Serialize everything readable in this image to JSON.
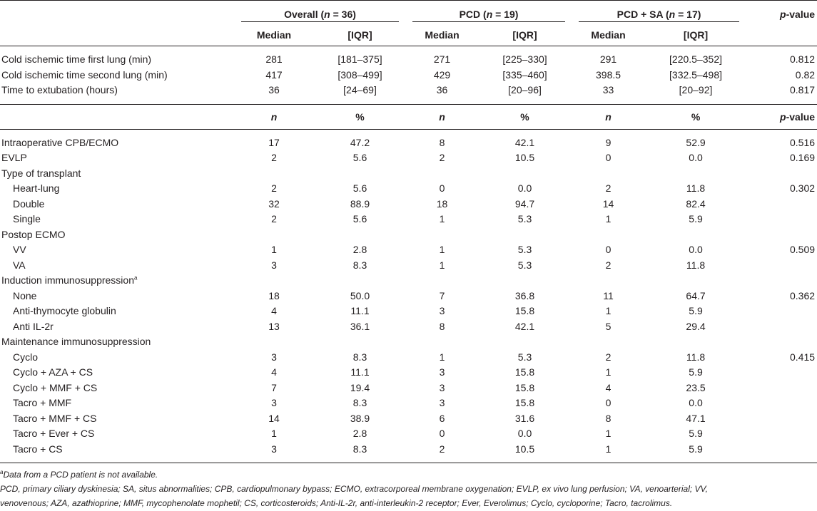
{
  "header": {
    "groups": [
      {
        "pre": "Overall (",
        "n": "n",
        "post": " = 36)"
      },
      {
        "pre": "PCD (",
        "n": "n",
        "post": " = 19)"
      },
      {
        "pre": "PCD + SA (",
        "n": "n",
        "post": " = 17)"
      }
    ],
    "pvalue_p": "p",
    "pvalue_rest": "-value",
    "median": "Median",
    "iqr": "[IQR]",
    "n": "n",
    "pct": "%"
  },
  "continuous_rows": [
    {
      "label": "Cold ischemic time first lung (min)",
      "vals": [
        "281",
        "[181–375]",
        "271",
        "[225–330]",
        "291",
        "[220.5–352]"
      ],
      "p": "0.812"
    },
    {
      "label": "Cold ischemic time second lung (min)",
      "vals": [
        "417",
        "[308–499]",
        "429",
        "[335–460]",
        "398.5",
        "[332.5–498]"
      ],
      "p": "0.82"
    },
    {
      "label": "Time to extubation (hours)",
      "vals": [
        "36",
        "[24–69]",
        "36",
        "[20–96]",
        "33",
        "[20–92]"
      ],
      "p": "0.817"
    }
  ],
  "categorical_rows": [
    {
      "label": "Intraoperative CPB/ECMO",
      "sub": false,
      "vals": [
        "17",
        "47.2",
        "8",
        "42.1",
        "9",
        "52.9"
      ],
      "p": "0.516"
    },
    {
      "label": "EVLP",
      "sub": false,
      "vals": [
        "2",
        "5.6",
        "2",
        "10.5",
        "0",
        "0.0"
      ],
      "p": "0.169"
    },
    {
      "label": "Type of transplant",
      "sub": false,
      "vals": [
        "",
        "",
        "",
        "",
        "",
        ""
      ],
      "p": ""
    },
    {
      "label": "Heart-lung",
      "sub": true,
      "vals": [
        "2",
        "5.6",
        "0",
        "0.0",
        "2",
        "11.8"
      ],
      "p": "0.302"
    },
    {
      "label": "Double",
      "sub": true,
      "vals": [
        "32",
        "88.9",
        "18",
        "94.7",
        "14",
        "82.4"
      ],
      "p": ""
    },
    {
      "label": "Single",
      "sub": true,
      "vals": [
        "2",
        "5.6",
        "1",
        "5.3",
        "1",
        "5.9"
      ],
      "p": ""
    },
    {
      "label": "Postop ECMO",
      "sub": false,
      "vals": [
        "",
        "",
        "",
        "",
        "",
        ""
      ],
      "p": ""
    },
    {
      "label": "VV",
      "sub": true,
      "vals": [
        "1",
        "2.8",
        "1",
        "5.3",
        "0",
        "0.0"
      ],
      "p": "0.509"
    },
    {
      "label": "VA",
      "sub": true,
      "vals": [
        "3",
        "8.3",
        "1",
        "5.3",
        "2",
        "11.8"
      ],
      "p": ""
    },
    {
      "label": "Induction immunosuppression",
      "sup": "a",
      "sub": false,
      "vals": [
        "",
        "",
        "",
        "",
        "",
        ""
      ],
      "p": ""
    },
    {
      "label": "None",
      "sub": true,
      "vals": [
        "18",
        "50.0",
        "7",
        "36.8",
        "11",
        "64.7"
      ],
      "p": "0.362"
    },
    {
      "label": "Anti-thymocyte globulin",
      "sub": true,
      "vals": [
        "4",
        "11.1",
        "3",
        "15.8",
        "1",
        "5.9"
      ],
      "p": ""
    },
    {
      "label": "Anti IL-2r",
      "sub": true,
      "vals": [
        "13",
        "36.1",
        "8",
        "42.1",
        "5",
        "29.4"
      ],
      "p": ""
    },
    {
      "label": "Maintenance immunosuppression",
      "sub": false,
      "vals": [
        "",
        "",
        "",
        "",
        "",
        ""
      ],
      "p": ""
    },
    {
      "label": "Cyclo",
      "sub": true,
      "vals": [
        "3",
        "8.3",
        "1",
        "5.3",
        "2",
        "11.8"
      ],
      "p": "0.415"
    },
    {
      "label": "Cyclo + AZA + CS",
      "sub": true,
      "vals": [
        "4",
        "11.1",
        "3",
        "15.8",
        "1",
        "5.9"
      ],
      "p": ""
    },
    {
      "label": "Cyclo + MMF + CS",
      "sub": true,
      "vals": [
        "7",
        "19.4",
        "3",
        "15.8",
        "4",
        "23.5"
      ],
      "p": ""
    },
    {
      "label": "Tacro + MMF",
      "sub": true,
      "vals": [
        "3",
        "8.3",
        "3",
        "15.8",
        "0",
        "0.0"
      ],
      "p": ""
    },
    {
      "label": "Tacro + MMF + CS",
      "sub": true,
      "vals": [
        "14",
        "38.9",
        "6",
        "31.6",
        "8",
        "47.1"
      ],
      "p": ""
    },
    {
      "label": "Tacro + Ever + CS",
      "sub": true,
      "vals": [
        "1",
        "2.8",
        "0",
        "0.0",
        "1",
        "5.9"
      ],
      "p": ""
    },
    {
      "label": "Tacro + CS",
      "sub": true,
      "vals": [
        "3",
        "8.3",
        "2",
        "10.5",
        "1",
        "5.9"
      ],
      "p": ""
    }
  ],
  "footnotes": {
    "sup": "a",
    "note_a": "Data from a PCD patient is not available.",
    "abbr_1": "PCD, primary ciliary dyskinesia; SA, situs abnormalities; CPB, cardiopulmonary bypass; ECMO, extracorporeal membrane oxygenation; EVLP, ex vivo lung perfusion; VA, venoarterial; VV,",
    "abbr_2": "venovenous; AZA, azathioprine; MMF, mycophenolate mophetil; CS, corticosteroids; Anti-IL-2r, anti-interleukin-2 receptor; Ever, Everolimus; Cyclo, cycloporine; Tacro, tacrolimus."
  }
}
